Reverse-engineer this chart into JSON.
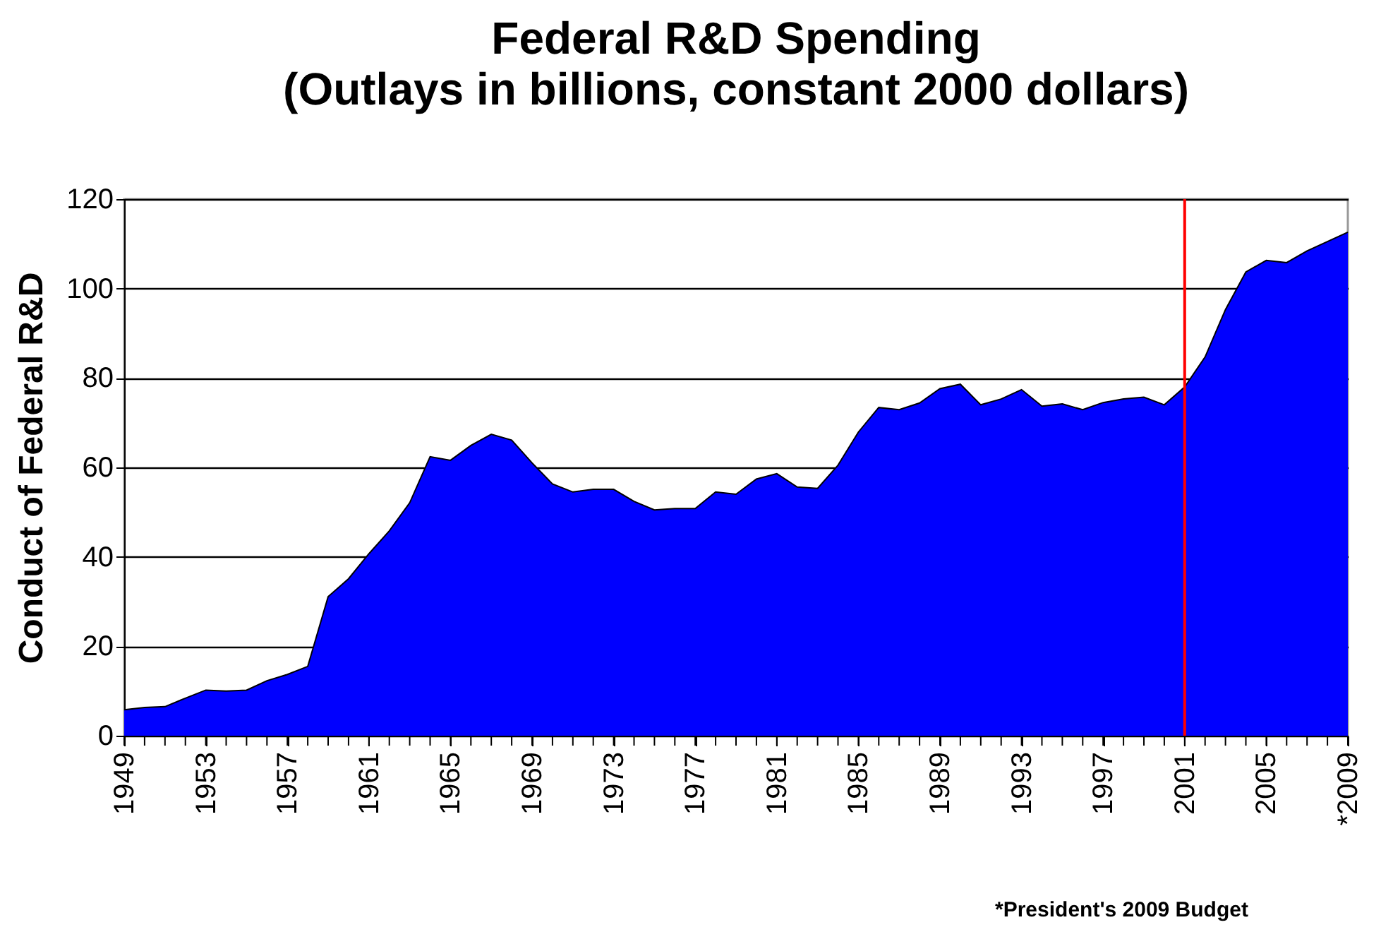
{
  "chart_data": {
    "type": "area",
    "title": "Federal R&D Spending",
    "subtitle": "(Outlays in billions, constant 2000 dollars)",
    "ylabel": "Conduct of Federal R&D",
    "x": [
      1949,
      1950,
      1951,
      1952,
      1953,
      1954,
      1955,
      1956,
      1957,
      1958,
      1959,
      1960,
      1961,
      1962,
      1963,
      1964,
      1965,
      1966,
      1967,
      1968,
      1969,
      1970,
      1971,
      1972,
      1973,
      1974,
      1975,
      1976,
      1977,
      1978,
      1979,
      1980,
      1981,
      1982,
      1983,
      1984,
      1985,
      1986,
      1987,
      1988,
      1989,
      1990,
      1991,
      1992,
      1993,
      1994,
      1995,
      1996,
      1997,
      1998,
      1999,
      2000,
      2001,
      2002,
      2003,
      2004,
      2005,
      2006,
      2007,
      2008,
      2009
    ],
    "series": [
      {
        "color": "#0000ff",
        "values": [
          5.8,
          6.3,
          6.5,
          8.4,
          10.2,
          10.0,
          10.2,
          12.3,
          13.7,
          15.5,
          31.1,
          35.1,
          40.7,
          45.8,
          52.1,
          62.4,
          61.6,
          64.9,
          67.4,
          66.1,
          61,
          56.3,
          54.5,
          55.1,
          55.1,
          52.4,
          50.5,
          50.8,
          50.8,
          54.5,
          54.0,
          57.4,
          58.6,
          55.6,
          55.3,
          60.5,
          67.9,
          73.4,
          72.9,
          74.4,
          77.6,
          78.6,
          74.0,
          75.3,
          77.4,
          73.7,
          74.2,
          72.9,
          74.5,
          75.3,
          75.7,
          74.0,
          78,
          84.7,
          95.3,
          103.7,
          106.3,
          105.8,
          108.4,
          110.5,
          112.6
        ]
      }
    ],
    "xlim": [
      1949,
      2009
    ],
    "xticks": [
      1949,
      {
        "value": 1950,
        "label": null
      },
      {
        "value": 1951,
        "label": null
      },
      {
        "value": 1952,
        "label": null
      },
      1953,
      {
        "value": 1954,
        "label": null
      },
      {
        "value": 1955,
        "label": null
      },
      {
        "value": 1956,
        "label": null
      },
      1957,
      {
        "value": 1958,
        "label": null
      },
      {
        "value": 1959,
        "label": null
      },
      {
        "value": 1960,
        "label": null
      },
      1961,
      {
        "value": 1962,
        "label": null
      },
      {
        "value": 1963,
        "label": null
      },
      {
        "value": 1964,
        "label": null
      },
      1965,
      {
        "value": 1966,
        "label": null
      },
      {
        "value": 1967,
        "label": null
      },
      {
        "value": 1968,
        "label": null
      },
      1969,
      {
        "value": 1970,
        "label": null
      },
      {
        "value": 1971,
        "label": null
      },
      {
        "value": 1972,
        "label": null
      },
      1973,
      {
        "value": 1974,
        "label": null
      },
      {
        "value": 1975,
        "label": null
      },
      {
        "value": 1976,
        "label": null
      },
      1977,
      {
        "value": 1978,
        "label": null
      },
      {
        "value": 1979,
        "label": null
      },
      {
        "value": 1980,
        "label": null
      },
      1981,
      {
        "value": 1982,
        "label": null
      },
      {
        "value": 1983,
        "label": null
      },
      {
        "value": 1984,
        "label": null
      },
      1985,
      {
        "value": 1986,
        "label": null
      },
      {
        "value": 1987,
        "label": null
      },
      {
        "value": 1988,
        "label": null
      },
      1989,
      {
        "value": 1990,
        "label": null
      },
      {
        "value": 1991,
        "label": null
      },
      {
        "value": 1992,
        "label": null
      },
      1993,
      {
        "value": 1994,
        "label": null
      },
      {
        "value": 1995,
        "label": null
      },
      {
        "value": 1996,
        "label": null
      },
      1997,
      {
        "value": 1998,
        "label": null
      },
      {
        "value": 1999,
        "label": null
      },
      {
        "value": 2000,
        "label": null
      },
      2001,
      {
        "value": 2002,
        "label": null
      },
      {
        "value": 2003,
        "label": null
      },
      {
        "value": 2004,
        "label": null
      },
      2005,
      {
        "value": 2006,
        "label": null
      },
      {
        "value": 2007,
        "label": null
      },
      {
        "value": 2008,
        "label": null
      },
      {
        "value": 2009,
        "label": "*2009"
      }
    ],
    "ylim": [
      0,
      120
    ],
    "yticks": [
      0,
      20,
      40,
      60,
      80,
      100,
      120
    ],
    "grid": "y",
    "ref_lines": [
      {
        "axis": "x",
        "value": 2001,
        "color": "#ff0000"
      }
    ],
    "annotations": [
      "*President's 2009 Budget"
    ]
  }
}
